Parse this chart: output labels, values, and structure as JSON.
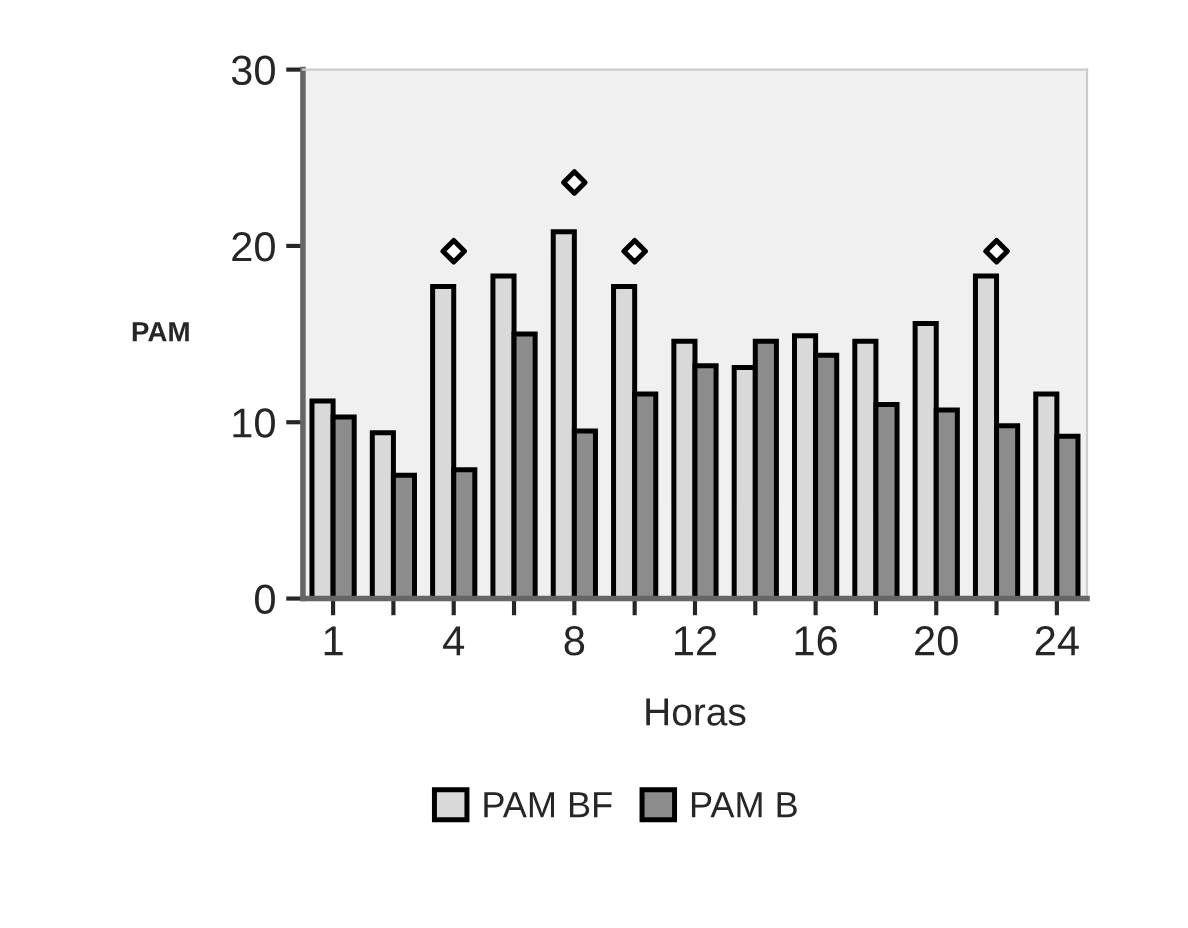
{
  "chart_data": {
    "type": "bar",
    "xlabel": "Horas",
    "ylabel": "PAM",
    "categories": [
      "1",
      null,
      "4",
      null,
      "8",
      null,
      "12",
      null,
      "16",
      null,
      "20",
      null,
      "24"
    ],
    "series": [
      {
        "name": "PAM BF",
        "color": "#d9d9d9",
        "values": [
          11.2,
          9.4,
          17.7,
          18.3,
          20.8,
          17.7,
          14.6,
          13.1,
          14.9,
          14.6,
          15.6,
          18.3,
          11.6
        ]
      },
      {
        "name": "PAM B",
        "color": "#8c8c8c",
        "values": [
          10.3,
          7.0,
          7.3,
          15.0,
          9.5,
          11.6,
          13.2,
          14.6,
          13.8,
          11.0,
          10.7,
          9.8,
          9.2
        ]
      },
      {
        "type": "scatter",
        "marker": "diamond",
        "color": "#ffffff",
        "values": [
          null,
          null,
          19.7,
          null,
          23.6,
          19.7,
          null,
          null,
          null,
          null,
          null,
          19.7,
          null
        ]
      }
    ],
    "ylim": [
      0,
      30
    ],
    "yticks": [
      0,
      10,
      20,
      30
    ],
    "legend": "bottom",
    "grid": false
  }
}
